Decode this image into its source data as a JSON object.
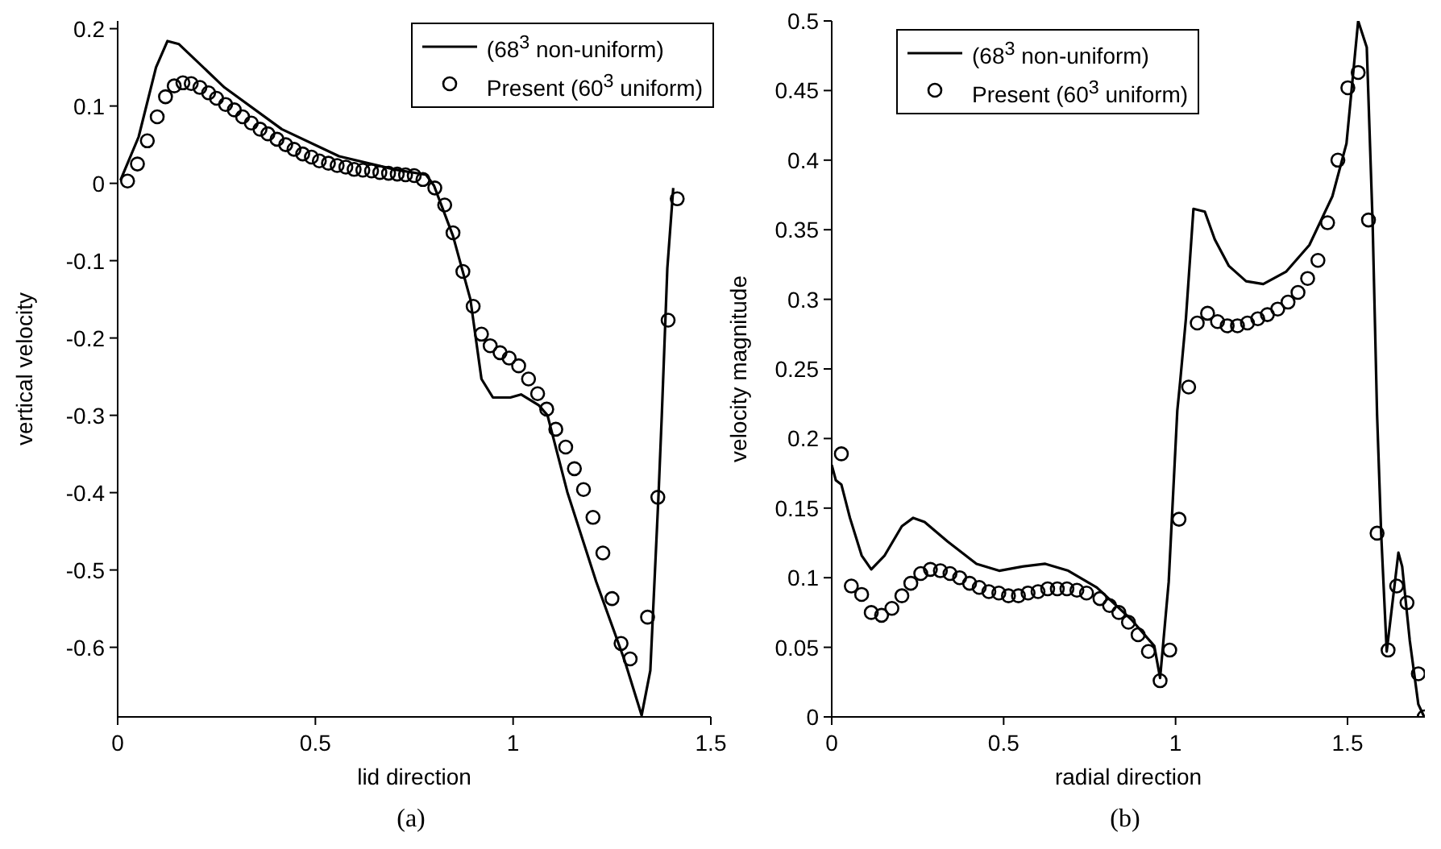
{
  "chart_data": [
    {
      "type": "line",
      "xlabel": "lid direction",
      "ylabel": "vertical velocity",
      "annotations": [
        "(a)"
      ],
      "xlim": [
        0,
        1.5
      ],
      "ylim": [
        -0.69,
        0.21
      ],
      "xticks": [
        0,
        0.5,
        1,
        1.5
      ],
      "yticks": [
        -0.6,
        -0.5,
        -0.4,
        -0.3,
        -0.2,
        -0.1,
        0,
        0.1,
        0.2
      ],
      "grid": false,
      "legend": "top right",
      "series": [
        {
          "name": "(68$^{3}$ non-uniform)",
          "type": "line",
          "marker": "none",
          "line_style": "solid",
          "color": "#000000",
          "x": [
            0.007,
            0.053,
            0.097,
            0.126,
            0.155,
            0.27,
            0.415,
            0.56,
            0.7,
            0.78,
            0.8,
            0.848,
            0.892,
            0.92,
            0.949,
            0.993,
            1.02,
            1.065,
            1.087,
            1.137,
            1.21,
            1.282,
            1.325,
            1.347,
            1.368,
            1.376,
            1.39,
            1.405
          ],
          "values": [
            0.004,
            0.06,
            0.15,
            0.184,
            0.18,
            0.124,
            0.07,
            0.035,
            0.018,
            0.011,
            -0.003,
            -0.068,
            -0.15,
            -0.253,
            -0.277,
            -0.277,
            -0.273,
            -0.287,
            -0.3,
            -0.399,
            -0.515,
            -0.617,
            -0.688,
            -0.63,
            -0.4,
            -0.3,
            -0.11,
            -0.006
          ]
        },
        {
          "name": "Present (60$^{3}$ uniform)",
          "type": "scatter",
          "marker": "circle",
          "color": "#000000",
          "x": [
            0.025,
            0.05,
            0.075,
            0.1,
            0.121,
            0.143,
            0.165,
            0.186,
            0.208,
            0.23,
            0.25,
            0.273,
            0.295,
            0.316,
            0.338,
            0.36,
            0.38,
            0.403,
            0.425,
            0.446,
            0.468,
            0.49,
            0.51,
            0.533,
            0.555,
            0.577,
            0.598,
            0.62,
            0.642,
            0.663,
            0.685,
            0.707,
            0.728,
            0.75,
            0.772,
            0.802,
            0.827,
            0.848,
            0.873,
            0.899,
            0.92,
            0.942,
            0.967,
            0.99,
            1.014,
            1.039,
            1.062,
            1.085,
            1.108,
            1.133,
            1.155,
            1.178,
            1.202,
            1.227,
            1.25,
            1.273,
            1.296,
            1.34,
            1.366,
            1.392,
            1.415
          ],
          "values": [
            0.003,
            0.025,
            0.055,
            0.086,
            0.112,
            0.126,
            0.13,
            0.129,
            0.124,
            0.117,
            0.11,
            0.102,
            0.095,
            0.086,
            0.078,
            0.07,
            0.064,
            0.057,
            0.05,
            0.044,
            0.038,
            0.034,
            0.029,
            0.026,
            0.023,
            0.021,
            0.018,
            0.017,
            0.016,
            0.014,
            0.013,
            0.012,
            0.011,
            0.01,
            0.005,
            -0.006,
            -0.028,
            -0.064,
            -0.114,
            -0.159,
            -0.195,
            -0.21,
            -0.219,
            -0.226,
            -0.236,
            -0.253,
            -0.272,
            -0.292,
            -0.318,
            -0.341,
            -0.369,
            -0.396,
            -0.432,
            -0.478,
            -0.537,
            -0.595,
            -0.615,
            -0.561,
            -0.406,
            -0.177,
            -0.02
          ]
        }
      ]
    },
    {
      "type": "line",
      "xlabel": "radial direction",
      "ylabel": "velocity magnitude",
      "annotations": [
        "(b)"
      ],
      "xlim": [
        0,
        1.725
      ],
      "ylim": [
        0,
        0.5
      ],
      "xticks": [
        0,
        0.5,
        1,
        1.5
      ],
      "yticks": [
        0,
        0.05,
        0.1,
        0.15,
        0.2,
        0.25,
        0.3,
        0.35,
        0.4,
        0.45,
        0.5
      ],
      "grid": false,
      "legend": "top",
      "series": [
        {
          "name": "(68$^{3}$ non-uniform)",
          "type": "line",
          "marker": "none",
          "line_style": "solid",
          "color": "#000000",
          "x": [
            0,
            0.012,
            0.028,
            0.053,
            0.087,
            0.115,
            0.154,
            0.204,
            0.237,
            0.27,
            0.337,
            0.421,
            0.487,
            0.554,
            0.621,
            0.688,
            0.771,
            0.871,
            0.938,
            0.955,
            0.98,
            1.005,
            1.013,
            1.03,
            1.052,
            1.085,
            1.114,
            1.155,
            1.205,
            1.255,
            1.322,
            1.389,
            1.456,
            1.497,
            1.531,
            1.556,
            1.573,
            1.586,
            1.598,
            1.614,
            1.648,
            1.659,
            1.681,
            1.706,
            1.723
          ],
          "values": [
            0.181,
            0.17,
            0.167,
            0.143,
            0.116,
            0.106,
            0.116,
            0.137,
            0.143,
            0.14,
            0.126,
            0.11,
            0.105,
            0.108,
            0.11,
            0.105,
            0.093,
            0.07,
            0.051,
            0.028,
            0.097,
            0.22,
            0.24,
            0.286,
            0.365,
            0.363,
            0.343,
            0.324,
            0.313,
            0.311,
            0.32,
            0.339,
            0.374,
            0.412,
            0.5,
            0.481,
            0.355,
            0.217,
            0.131,
            0.047,
            0.118,
            0.108,
            0.055,
            0.009,
            0
          ]
        },
        {
          "name": "Present (60$^{3}$ uniform)",
          "type": "scatter",
          "marker": "circle",
          "color": "#000000",
          "x": [
            0.028,
            0.057,
            0.087,
            0.115,
            0.145,
            0.175,
            0.204,
            0.23,
            0.259,
            0.287,
            0.316,
            0.344,
            0.372,
            0.401,
            0.429,
            0.457,
            0.486,
            0.514,
            0.543,
            0.571,
            0.6,
            0.628,
            0.656,
            0.684,
            0.713,
            0.741,
            0.78,
            0.808,
            0.835,
            0.863,
            0.891,
            0.921,
            0.955,
            0.983,
            1.01,
            1.038,
            1.063,
            1.093,
            1.122,
            1.15,
            1.18,
            1.209,
            1.239,
            1.267,
            1.297,
            1.327,
            1.356,
            1.384,
            1.414,
            1.442,
            1.472,
            1.501,
            1.531,
            1.561,
            1.586,
            1.618,
            1.643,
            1.673,
            1.706,
            1.723
          ],
          "values": [
            0.189,
            0.094,
            0.088,
            0.075,
            0.073,
            0.078,
            0.087,
            0.096,
            0.103,
            0.106,
            0.105,
            0.103,
            0.1,
            0.096,
            0.093,
            0.09,
            0.089,
            0.087,
            0.087,
            0.089,
            0.09,
            0.092,
            0.092,
            0.092,
            0.091,
            0.089,
            0.085,
            0.08,
            0.075,
            0.068,
            0.059,
            0.047,
            0.026,
            0.048,
            0.142,
            0.237,
            0.283,
            0.29,
            0.284,
            0.281,
            0.281,
            0.283,
            0.286,
            0.289,
            0.293,
            0.298,
            0.305,
            0.315,
            0.328,
            0.355,
            0.4,
            0.452,
            0.463,
            0.357,
            0.132,
            0.048,
            0.094,
            0.082,
            0.031,
            0
          ]
        }
      ]
    }
  ]
}
